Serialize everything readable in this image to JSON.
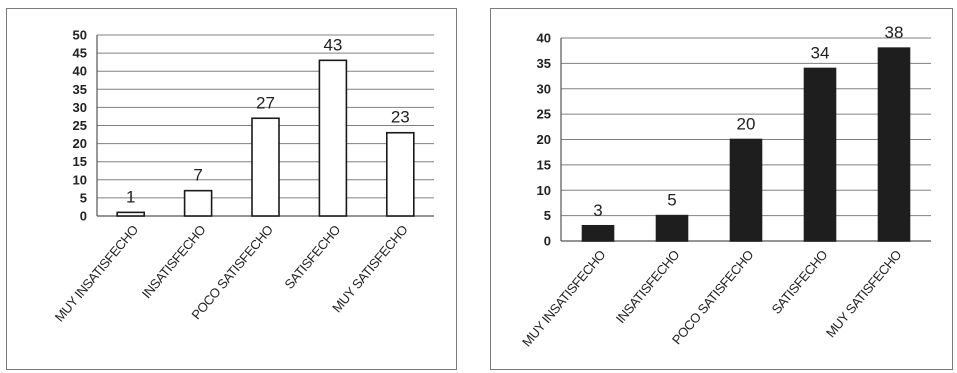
{
  "chart_data": [
    {
      "type": "bar",
      "categories": [
        "MUY INSATISFECHO",
        "INSATISFECHO",
        "POCO SATISFECHO",
        "SATISFECHO",
        "MUY SATISFECHO"
      ],
      "values": [
        1,
        7,
        27,
        43,
        23
      ],
      "value_labels": [
        "1",
        "7",
        "27",
        "43",
        "23"
      ],
      "ylim": [
        0,
        50
      ],
      "yticks": [
        "0",
        "5",
        "10",
        "15",
        "20",
        "25",
        "30",
        "35",
        "40",
        "45",
        "50"
      ],
      "grid": true,
      "bar_fill": "#ffffff",
      "bar_stroke": "#1a1a1a"
    },
    {
      "type": "bar",
      "categories": [
        "MUY INSATISFECHO",
        "INSATISFECHO",
        "POCO SATISFECHO",
        "SATISFECHO",
        "MUY SATISFECHO"
      ],
      "values": [
        3,
        5,
        20,
        34,
        38
      ],
      "value_labels": [
        "3",
        "5",
        "20",
        "34",
        "38"
      ],
      "ylim": [
        0,
        40
      ],
      "yticks": [
        "0",
        "5",
        "10",
        "15",
        "20",
        "25",
        "30",
        "35",
        "40"
      ],
      "grid": true,
      "bar_fill": "#1e1e1e",
      "bar_stroke": "#1e1e1e"
    }
  ]
}
